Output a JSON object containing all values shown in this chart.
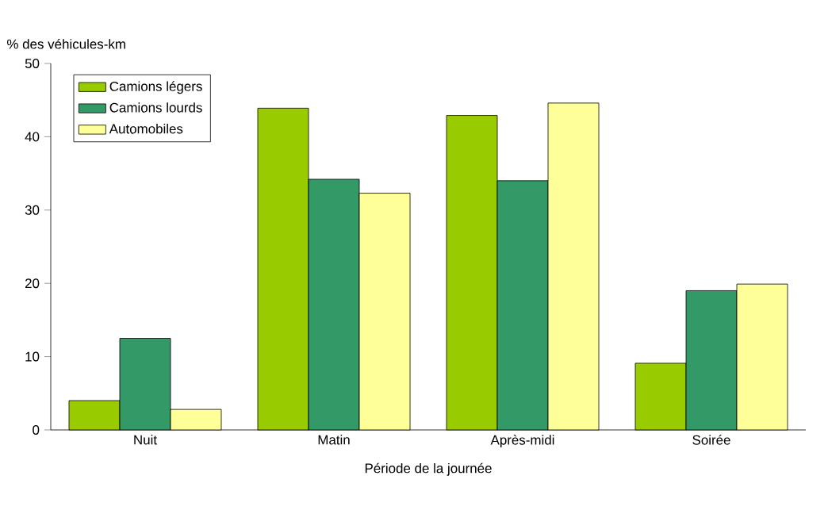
{
  "chart_data": {
    "type": "bar",
    "ylabel": "% des véhicules-km",
    "xlabel": "Période de la journée",
    "categories": [
      "Nuit",
      "Matin",
      "Après-midi",
      "Soirée"
    ],
    "series": [
      {
        "name": "Camions légers",
        "color": "#99cc00",
        "values": [
          4,
          43.9,
          42.9,
          9.1
        ]
      },
      {
        "name": "Camions lourds",
        "color": "#339966",
        "values": [
          12.5,
          34.2,
          34.0,
          19.0
        ]
      },
      {
        "name": "Automobiles",
        "color": "#ffff99",
        "values": [
          2.8,
          32.3,
          44.6,
          19.9
        ]
      }
    ],
    "ylim": [
      0,
      50
    ],
    "yticks": [
      0,
      10,
      20,
      30,
      40,
      50
    ],
    "legend": "top left"
  }
}
